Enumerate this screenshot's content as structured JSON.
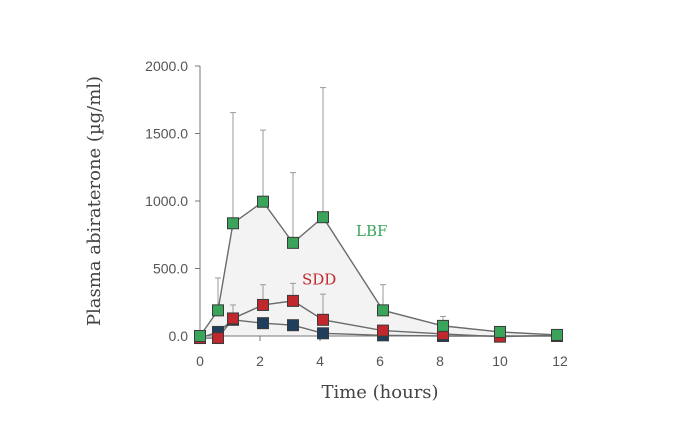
{
  "chart_data": {
    "type": "line",
    "xlabel": "Time (hours)",
    "ylabel": "Plasma abiraterone (µg/ml)",
    "xlim": [
      0,
      12
    ],
    "ylim": [
      0,
      2000
    ],
    "x_ticks": [
      "0",
      "2",
      "4",
      "6",
      "8",
      "10",
      "12"
    ],
    "y_ticks": [
      "0.0",
      "500.0",
      "1000.0",
      "1500.0",
      "2000.0"
    ],
    "grid": false,
    "legend": "inline labels",
    "series": [
      {
        "name": "LBF",
        "color": "#3aa55a",
        "label_at": [
          5.2,
          740
        ],
        "points": [
          {
            "x": 0,
            "y": 0,
            "err": 0
          },
          {
            "x": 0.6,
            "y": 190,
            "err": 240
          },
          {
            "x": 1.1,
            "y": 835,
            "err": 820
          },
          {
            "x": 2.1,
            "y": 995,
            "err": 530
          },
          {
            "x": 3.1,
            "y": 690,
            "err": 520
          },
          {
            "x": 4.1,
            "y": 880,
            "err": 960
          },
          {
            "x": 6.1,
            "y": 190,
            "err": 190
          },
          {
            "x": 8.1,
            "y": 75,
            "err": 70
          },
          {
            "x": 10.0,
            "y": 30,
            "err": 0
          },
          {
            "x": 11.9,
            "y": 8,
            "err": 0
          }
        ]
      },
      {
        "name": "SDD",
        "color": "#c0282d",
        "label_at": [
          3.4,
          380
        ],
        "points": [
          {
            "x": 0,
            "y": -15,
            "err": 0
          },
          {
            "x": 0.6,
            "y": -15,
            "err": 0
          },
          {
            "x": 1.1,
            "y": 130,
            "err": 100
          },
          {
            "x": 2.1,
            "y": 230,
            "err": 150
          },
          {
            "x": 3.1,
            "y": 260,
            "err": 130
          },
          {
            "x": 4.1,
            "y": 120,
            "err": 190
          },
          {
            "x": 6.1,
            "y": 40,
            "err": 0
          },
          {
            "x": 8.1,
            "y": 15,
            "err": 0
          },
          {
            "x": 10.0,
            "y": -5,
            "err": 0
          },
          {
            "x": 11.9,
            "y": 5,
            "err": 0
          }
        ]
      },
      {
        "name": "",
        "color": "#1f3f5c",
        "points": [
          {
            "x": 0,
            "y": -15,
            "err": 0
          },
          {
            "x": 0.6,
            "y": 30,
            "err": 0
          },
          {
            "x": 1.1,
            "y": 120,
            "err": 0
          },
          {
            "x": 2.1,
            "y": 95,
            "err": 0
          },
          {
            "x": 3.1,
            "y": 80,
            "err": 0
          },
          {
            "x": 4.1,
            "y": 20,
            "err": 0
          },
          {
            "x": 6.1,
            "y": 5,
            "err": 0
          },
          {
            "x": 8.1,
            "y": 0,
            "err": 0
          },
          {
            "x": 10.0,
            "y": 0,
            "err": 0
          },
          {
            "x": 11.9,
            "y": 0,
            "err": 0
          }
        ]
      }
    ]
  }
}
